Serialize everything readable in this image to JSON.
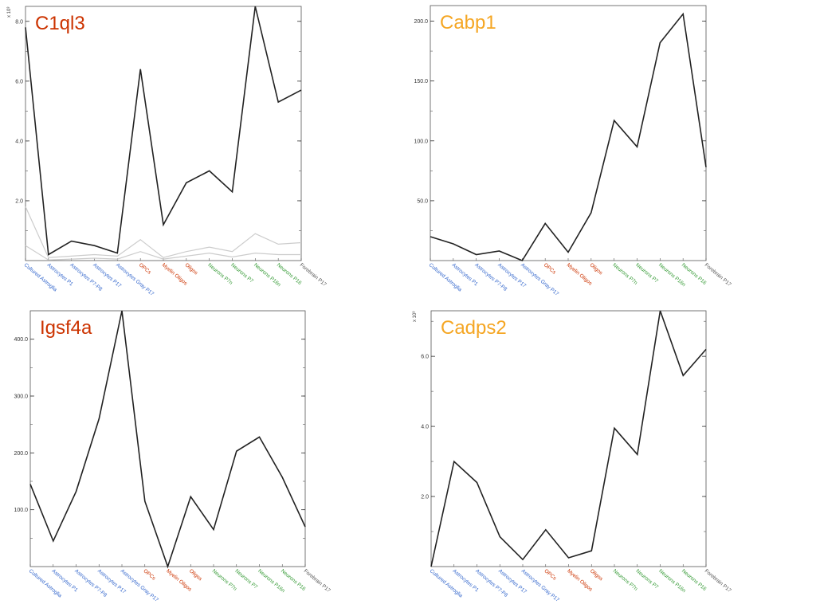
{
  "categories": [
    {
      "label": "Cultured Astroglia",
      "color": "#3366cc"
    },
    {
      "label": "Astrocytes P1",
      "color": "#3366cc"
    },
    {
      "label": "Astrocytes P7-P8",
      "color": "#3366cc"
    },
    {
      "label": "Astrocytes P17",
      "color": "#3366cc"
    },
    {
      "label": "Astrocytes Gray P17",
      "color": "#3366cc"
    },
    {
      "label": "OPCs",
      "color": "#cc3300"
    },
    {
      "label": "Myelin Oligos",
      "color": "#cc3300"
    },
    {
      "label": "Oligos",
      "color": "#cc3300"
    },
    {
      "label": "Neurons P7n",
      "color": "#339933"
    },
    {
      "label": "Neurons P7",
      "color": "#339933"
    },
    {
      "label": "Neurons P16n",
      "color": "#339933"
    },
    {
      "label": "Neurons P16",
      "color": "#339933"
    },
    {
      "label": "Forebrain P17",
      "color": "#555555"
    }
  ],
  "chart_data": [
    {
      "type": "line",
      "title": "C1ql3",
      "title_color": "#cc3300",
      "multiplier_label": "x 10³",
      "ylim": [
        0,
        8.5
      ],
      "yticks": [
        2.0,
        4.0,
        6.0,
        8.0
      ],
      "ytick_labels": [
        "2.0",
        "4.0",
        "6.0",
        "8.0"
      ],
      "series": [
        {
          "color": "#222222",
          "values": [
            7.8,
            0.2,
            0.65,
            0.5,
            0.25,
            6.4,
            1.2,
            2.6,
            3.0,
            2.3,
            8.5,
            5.3,
            5.7
          ]
        },
        {
          "color": "#cccccc",
          "values": [
            1.8,
            0.1,
            0.15,
            0.2,
            0.15,
            0.7,
            0.1,
            0.3,
            0.45,
            0.3,
            0.9,
            0.55,
            0.6
          ]
        },
        {
          "color": "#cccccc",
          "values": [
            0.5,
            0.02,
            0.05,
            0.08,
            0.05,
            0.3,
            0.05,
            0.15,
            0.25,
            0.12,
            0.25,
            0.2,
            0.2
          ]
        }
      ]
    },
    {
      "type": "line",
      "title": "Cabp1",
      "title_color": "#f5a623",
      "multiplier_label": "",
      "ylim": [
        0,
        213
      ],
      "yticks": [
        50,
        100,
        150,
        200
      ],
      "ytick_labels": [
        "50.0",
        "100.0",
        "150.0",
        "200.0"
      ],
      "series": [
        {
          "color": "#222222",
          "values": [
            20,
            14,
            5,
            8,
            0,
            31,
            7,
            40,
            117,
            95,
            182,
            206,
            78
          ]
        }
      ]
    },
    {
      "type": "line",
      "title": "Igsf4a",
      "title_color": "#cc3300",
      "multiplier_label": "",
      "ylim": [
        0,
        450
      ],
      "yticks": [
        100,
        200,
        300,
        400
      ],
      "ytick_labels": [
        "100.0",
        "200.0",
        "300.0",
        "400.0"
      ],
      "series": [
        {
          "color": "#222222",
          "values": [
            145,
            45,
            132,
            260,
            450,
            115,
            0,
            123,
            65,
            203,
            228,
            157,
            70
          ]
        }
      ]
    },
    {
      "type": "line",
      "title": "Cadps2",
      "title_color": "#f5a623",
      "multiplier_label": "x 10³",
      "ylim": [
        0,
        7.3
      ],
      "yticks": [
        2.0,
        4.0,
        6.0
      ],
      "ytick_labels": [
        "2.0",
        "4.0",
        "6.0"
      ],
      "series": [
        {
          "color": "#222222",
          "values": [
            0,
            3.0,
            2.4,
            0.85,
            0.2,
            1.05,
            0.25,
            0.45,
            3.95,
            3.2,
            7.3,
            5.45,
            6.2
          ]
        }
      ]
    }
  ]
}
